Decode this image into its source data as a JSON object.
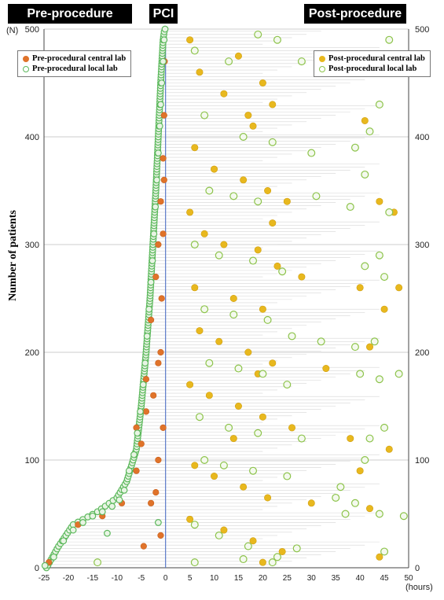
{
  "header": {
    "pre": "Pre-procedure",
    "pci": "PCI",
    "post": "Post-procedure"
  },
  "legend_left": {
    "central": "Pre-procedural central lab",
    "local": "Pre-procedural local lab"
  },
  "legend_right": {
    "central": "Post-procedural central lab",
    "local": "Post-procedural local lab"
  },
  "colors": {
    "pre_central": "#e0732a",
    "pre_local": "#5cb85c",
    "post_central": "#e8b81e",
    "post_local": "#8cc34a",
    "gridline": "#cccccc",
    "pci_line": "#5a79c9"
  },
  "chart_data": {
    "type": "scatter",
    "ylabel": "Number of patients",
    "y_unit": "(N)",
    "x_unit": "(hours)",
    "xlim": [
      -25,
      50
    ],
    "ylim": [
      0,
      500
    ],
    "x_ticks": [
      -25,
      -20,
      -15,
      -10,
      -5,
      0,
      5,
      10,
      15,
      20,
      25,
      30,
      35,
      40,
      45,
      50
    ],
    "y_ticks": [
      0,
      100,
      200,
      300,
      400,
      500
    ],
    "pre_local_curve": [
      [
        -24.5,
        0
      ],
      [
        -22,
        20
      ],
      [
        -19,
        40
      ],
      [
        -14,
        52
      ],
      [
        -10,
        65
      ],
      [
        -8,
        80
      ],
      [
        -6,
        110
      ],
      [
        -5,
        150
      ],
      [
        -4,
        200
      ],
      [
        -3.2,
        250
      ],
      [
        -2.6,
        300
      ],
      [
        -2,
        350
      ],
      [
        -1.5,
        400
      ],
      [
        -1,
        450
      ],
      [
        -0.5,
        490
      ],
      [
        -0.2,
        500
      ]
    ],
    "series": [
      {
        "name": "Pre-procedural central lab",
        "points": [
          [
            -24,
            5
          ],
          [
            -18,
            40
          ],
          [
            -13,
            48
          ],
          [
            -9,
            60
          ],
          [
            -6,
            90
          ],
          [
            -5,
            115
          ],
          [
            -4,
            145
          ],
          [
            -2.5,
            160
          ],
          [
            -1.5,
            190
          ],
          [
            -3,
            230
          ],
          [
            -2,
            270
          ],
          [
            -1.5,
            300
          ],
          [
            -1,
            340
          ],
          [
            -0.5,
            380
          ],
          [
            -0.3,
            420
          ],
          [
            -0.2,
            470
          ],
          [
            -14,
            5
          ],
          [
            -4.5,
            20
          ],
          [
            -1,
            30
          ],
          [
            -2,
            70
          ],
          [
            -1.5,
            100
          ],
          [
            -0.5,
            130
          ],
          [
            -1,
            200
          ],
          [
            -0.8,
            250
          ],
          [
            -0.5,
            310
          ],
          [
            -0.3,
            360
          ],
          [
            -3,
            60
          ],
          [
            -6,
            130
          ],
          [
            -4,
            175
          ]
        ]
      },
      {
        "name": "Pre-procedural local lab",
        "points": [
          [
            -24.8,
            2
          ],
          [
            -23,
            10
          ],
          [
            -21,
            25
          ],
          [
            -19,
            35
          ],
          [
            -17,
            42
          ],
          [
            -15,
            48
          ],
          [
            -13,
            52
          ],
          [
            -11,
            57
          ],
          [
            -9.5,
            63
          ],
          [
            -8.5,
            72
          ],
          [
            -7.5,
            90
          ],
          [
            -6.5,
            105
          ],
          [
            -5.8,
            125
          ],
          [
            -5.2,
            145
          ],
          [
            -4.6,
            170
          ],
          [
            -4.2,
            190
          ],
          [
            -3.8,
            215
          ],
          [
            -3.4,
            240
          ],
          [
            -3,
            265
          ],
          [
            -2.7,
            285
          ],
          [
            -2.4,
            310
          ],
          [
            -2.1,
            335
          ],
          [
            -1.8,
            360
          ],
          [
            -1.5,
            385
          ],
          [
            -1.2,
            410
          ],
          [
            -1,
            430
          ],
          [
            -0.8,
            450
          ],
          [
            -0.5,
            470
          ],
          [
            -0.3,
            490
          ],
          [
            -0.1,
            500
          ],
          [
            -14,
            5
          ],
          [
            -12,
            32
          ],
          [
            -1.5,
            42
          ]
        ]
      },
      {
        "name": "Post-procedural central lab",
        "points": [
          [
            5,
            490
          ],
          [
            7,
            460
          ],
          [
            12,
            440
          ],
          [
            15,
            475
          ],
          [
            20,
            450
          ],
          [
            22,
            430
          ],
          [
            18,
            410
          ],
          [
            6,
            390
          ],
          [
            10,
            370
          ],
          [
            16,
            360
          ],
          [
            21,
            350
          ],
          [
            25,
            340
          ],
          [
            5,
            330
          ],
          [
            8,
            310
          ],
          [
            12,
            300
          ],
          [
            19,
            295
          ],
          [
            23,
            280
          ],
          [
            6,
            260
          ],
          [
            14,
            250
          ],
          [
            20,
            240
          ],
          [
            28,
            270
          ],
          [
            40,
            260
          ],
          [
            45,
            240
          ],
          [
            7,
            220
          ],
          [
            11,
            210
          ],
          [
            17,
            200
          ],
          [
            22,
            190
          ],
          [
            33,
            185
          ],
          [
            5,
            170
          ],
          [
            9,
            160
          ],
          [
            15,
            150
          ],
          [
            20,
            140
          ],
          [
            26,
            130
          ],
          [
            38,
            120
          ],
          [
            46,
            110
          ],
          [
            6,
            95
          ],
          [
            10,
            85
          ],
          [
            16,
            75
          ],
          [
            21,
            65
          ],
          [
            30,
            60
          ],
          [
            42,
            55
          ],
          [
            5,
            45
          ],
          [
            12,
            35
          ],
          [
            18,
            25
          ],
          [
            24,
            15
          ],
          [
            44,
            10
          ],
          [
            20,
            5
          ],
          [
            14,
            120
          ],
          [
            19,
            180
          ],
          [
            22,
            320
          ],
          [
            17,
            420
          ],
          [
            41,
            415
          ],
          [
            44,
            340
          ],
          [
            47,
            330
          ],
          [
            48,
            260
          ],
          [
            42,
            205
          ],
          [
            40,
            90
          ]
        ]
      },
      {
        "name": "Post-procedural local lab",
        "points": [
          [
            6,
            480
          ],
          [
            13,
            470
          ],
          [
            19,
            495
          ],
          [
            23,
            490
          ],
          [
            28,
            470
          ],
          [
            46,
            490
          ],
          [
            44,
            430
          ],
          [
            42,
            405
          ],
          [
            8,
            420
          ],
          [
            16,
            400
          ],
          [
            22,
            395
          ],
          [
            30,
            385
          ],
          [
            39,
            390
          ],
          [
            41,
            365
          ],
          [
            9,
            350
          ],
          [
            14,
            345
          ],
          [
            19,
            340
          ],
          [
            31,
            345
          ],
          [
            38,
            335
          ],
          [
            46,
            330
          ],
          [
            6,
            300
          ],
          [
            11,
            290
          ],
          [
            18,
            285
          ],
          [
            24,
            275
          ],
          [
            41,
            280
          ],
          [
            45,
            270
          ],
          [
            44,
            290
          ],
          [
            8,
            240
          ],
          [
            14,
            235
          ],
          [
            21,
            230
          ],
          [
            26,
            215
          ],
          [
            32,
            210
          ],
          [
            39,
            205
          ],
          [
            43,
            210
          ],
          [
            9,
            190
          ],
          [
            15,
            185
          ],
          [
            20,
            180
          ],
          [
            25,
            170
          ],
          [
            40,
            180
          ],
          [
            44,
            175
          ],
          [
            48,
            180
          ],
          [
            7,
            140
          ],
          [
            13,
            130
          ],
          [
            19,
            125
          ],
          [
            28,
            120
          ],
          [
            42,
            120
          ],
          [
            45,
            130
          ],
          [
            8,
            100
          ],
          [
            12,
            95
          ],
          [
            18,
            90
          ],
          [
            25,
            85
          ],
          [
            36,
            75
          ],
          [
            39,
            60
          ],
          [
            44,
            50
          ],
          [
            49,
            48
          ],
          [
            6,
            40
          ],
          [
            11,
            30
          ],
          [
            17,
            20
          ],
          [
            23,
            10
          ],
          [
            27,
            18
          ],
          [
            -14,
            5
          ],
          [
            6,
            5
          ],
          [
            16,
            8
          ],
          [
            22,
            5
          ],
          [
            45,
            15
          ],
          [
            41,
            100
          ],
          [
            35,
            65
          ],
          [
            37,
            50
          ]
        ]
      }
    ]
  }
}
